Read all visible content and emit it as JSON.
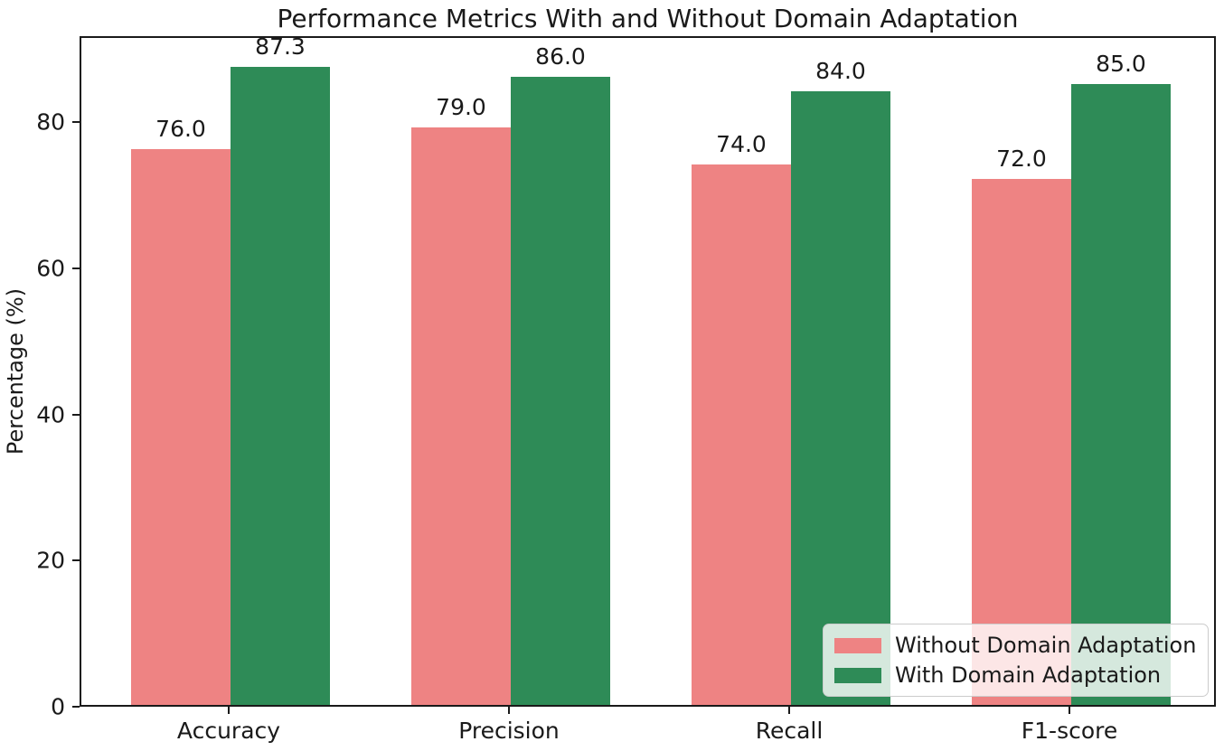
{
  "chart_data": {
    "type": "bar",
    "title": "Performance Metrics With and Without Domain Adaptation",
    "xlabel": "",
    "ylabel": "Percentage (%)",
    "categories": [
      "Accuracy",
      "Precision",
      "Recall",
      "F1-score"
    ],
    "series": [
      {
        "name": "Without Domain Adaptation",
        "color": "#ee8383",
        "values": [
          76.0,
          79.0,
          74.0,
          72.0
        ]
      },
      {
        "name": "With Domain Adaptation",
        "color": "#2e8b57",
        "values": [
          87.3,
          86.0,
          84.0,
          85.0
        ]
      }
    ],
    "bar_value_labels": [
      [
        "76.0",
        "79.0",
        "74.0",
        "72.0"
      ],
      [
        "87.3",
        "86.0",
        "84.0",
        "85.0"
      ]
    ],
    "yticks": [
      0,
      20,
      40,
      60,
      80
    ],
    "ylim": [
      0,
      91.75
    ],
    "grid": false,
    "legend_position": "lower right",
    "colors": {
      "without_adaptation": "#ee8383",
      "with_adaptation": "#2e8b57",
      "axis": "#1a1a1a",
      "legend_border": "#cccccc"
    }
  }
}
